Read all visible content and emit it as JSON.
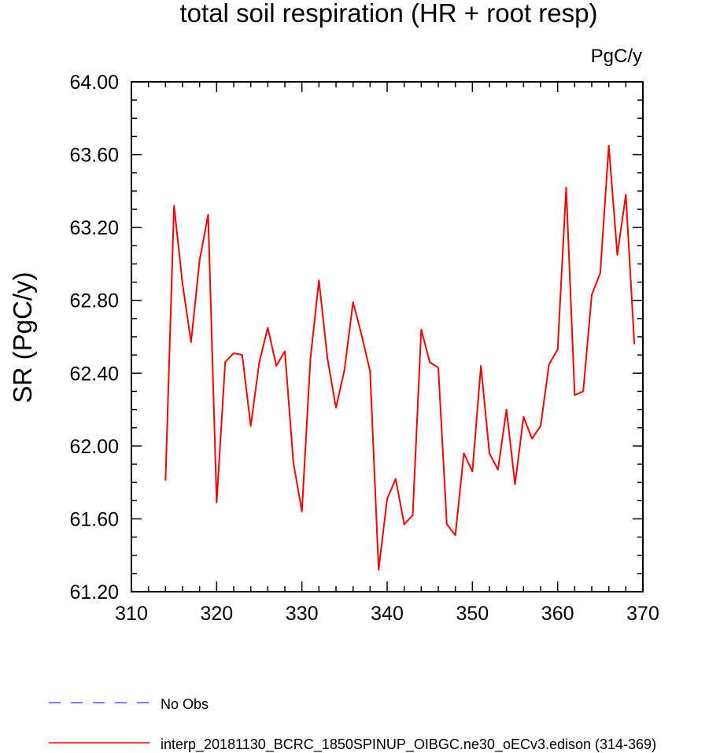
{
  "chart_data": {
    "type": "line",
    "title": "total soil respiration (HR + root resp)",
    "units_label": "PgC/y",
    "ylabel": "SR  (PgC/y)",
    "xlabel": "",
    "xlim": [
      310,
      370
    ],
    "ylim": [
      61.2,
      64.0
    ],
    "x_ticks": [
      310,
      320,
      330,
      340,
      350,
      360,
      370
    ],
    "y_ticks": [
      61.2,
      61.6,
      62.0,
      62.4,
      62.8,
      63.2,
      63.6,
      64.0
    ],
    "y_tick_labels": [
      "61.20",
      "61.60",
      "62.00",
      "62.40",
      "62.80",
      "63.20",
      "63.60",
      "64.00"
    ],
    "grid": false,
    "legend_position": "bottom",
    "series": [
      {
        "name": "No Obs",
        "color": "#0000ff",
        "dash": "dashed",
        "x": [],
        "values": []
      },
      {
        "name": "interp_20181130_BCRC_1850SPINUP_OIBGC.ne30_oECv3.edison (314-369)",
        "color": "#ff0000",
        "dash": "solid",
        "x": [
          314,
          315,
          316,
          317,
          318,
          319,
          320,
          321,
          322,
          323,
          324,
          325,
          326,
          327,
          328,
          329,
          330,
          331,
          332,
          333,
          334,
          335,
          336,
          337,
          338,
          339,
          340,
          341,
          342,
          343,
          344,
          345,
          346,
          347,
          348,
          349,
          350,
          351,
          352,
          353,
          354,
          355,
          356,
          357,
          358,
          359,
          360,
          361,
          362,
          363,
          364,
          365,
          366,
          367,
          368,
          369
        ],
        "values": [
          61.81,
          63.32,
          62.89,
          62.57,
          63.02,
          63.27,
          61.69,
          62.46,
          62.51,
          62.5,
          62.11,
          62.46,
          62.65,
          62.44,
          62.52,
          61.91,
          61.64,
          62.48,
          62.91,
          62.48,
          62.21,
          62.42,
          62.79,
          62.61,
          62.41,
          61.32,
          61.71,
          61.82,
          61.57,
          61.62,
          62.64,
          62.46,
          62.43,
          61.57,
          61.51,
          61.96,
          61.86,
          62.44,
          61.96,
          61.87,
          62.2,
          61.79,
          62.16,
          62.04,
          62.11,
          62.45,
          62.53,
          63.42,
          62.28,
          62.3,
          62.83,
          62.95,
          63.65,
          63.05,
          63.38,
          62.56
        ]
      }
    ]
  }
}
